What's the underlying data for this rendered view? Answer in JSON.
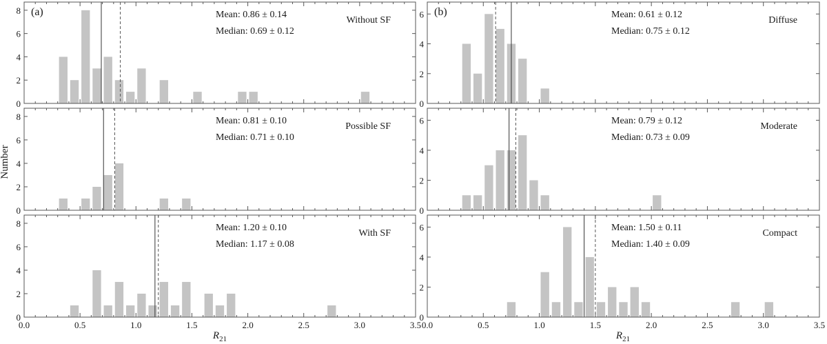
{
  "chart_data": [
    {
      "type": "bar",
      "panel_label": "(a)",
      "title": "Without SF",
      "mean_text": "Mean: 0.86 ± 0.14",
      "median_text": "Median: 0.69 ± 0.12",
      "mean": 0.86,
      "median": 0.69,
      "bin_width": 0.1,
      "bin_centers": [
        0.35,
        0.45,
        0.55,
        0.65,
        0.75,
        0.85,
        0.95,
        1.05,
        1.25,
        1.55,
        1.95,
        2.05,
        3.05
      ],
      "values": [
        4,
        2,
        8,
        3,
        4,
        2,
        1,
        3,
        2,
        1,
        1,
        1,
        1
      ],
      "xlim": [
        0,
        3.5
      ],
      "ylim": [
        0,
        8.7
      ],
      "yticks": [
        0,
        2,
        4,
        6,
        8
      ],
      "xticks": [
        "0.0",
        "0.5",
        "1.0",
        "1.5",
        "2.0",
        "2.5",
        "3.0",
        "3.5"
      ],
      "show_x_tick_labels": false
    },
    {
      "type": "bar",
      "panel_label": "",
      "title": "Possible SF",
      "mean_text": "Mean: 0.81 ± 0.10",
      "median_text": "Median: 0.71 ± 0.10",
      "mean": 0.81,
      "median": 0.71,
      "bin_width": 0.1,
      "bin_centers": [
        0.35,
        0.55,
        0.65,
        0.75,
        0.85,
        1.25,
        1.45
      ],
      "values": [
        1,
        1,
        2,
        3,
        4,
        1,
        1
      ],
      "xlim": [
        0,
        3.5
      ],
      "ylim": [
        0,
        8.7
      ],
      "yticks": [
        0,
        2,
        4,
        6,
        8
      ],
      "xticks": [
        "0.0",
        "0.5",
        "1.0",
        "1.5",
        "2.0",
        "2.5",
        "3.0",
        "3.5"
      ],
      "show_x_tick_labels": false
    },
    {
      "type": "bar",
      "panel_label": "",
      "title": "With SF",
      "mean_text": "Mean: 1.20 ± 0.10",
      "median_text": "Median: 1.17 ± 0.08",
      "mean": 1.2,
      "median": 1.17,
      "bin_width": 0.1,
      "bin_centers": [
        0.45,
        0.65,
        0.75,
        0.85,
        0.95,
        1.05,
        1.15,
        1.25,
        1.35,
        1.45,
        1.65,
        1.75,
        1.85,
        2.75
      ],
      "values": [
        1,
        4,
        1,
        3,
        1,
        2,
        1,
        3,
        1,
        3,
        2,
        1,
        2,
        1
      ],
      "xlim": [
        0,
        3.5
      ],
      "ylim": [
        0,
        8.7
      ],
      "yticks": [
        0,
        2,
        4,
        6,
        8
      ],
      "xticks": [
        "0.0",
        "0.5",
        "1.0",
        "1.5",
        "2.0",
        "2.5",
        "3.0",
        "3.5"
      ],
      "show_x_tick_labels": true
    },
    {
      "type": "bar",
      "panel_label": "(b)",
      "title": "Diffuse",
      "mean_text": "Mean: 0.61 ± 0.12",
      "median_text": "Median: 0.75 ± 0.12",
      "mean": 0.61,
      "median": 0.75,
      "bin_width": 0.1,
      "bin_centers": [
        0.35,
        0.45,
        0.55,
        0.65,
        0.75,
        0.85,
        1.05
      ],
      "values": [
        4,
        2,
        6,
        5,
        4,
        3,
        1
      ],
      "xlim": [
        0,
        3.5
      ],
      "ylim": [
        0,
        6.8
      ],
      "yticks": [
        0,
        2,
        4,
        6
      ],
      "xticks": [
        "0.0",
        "0.5",
        "1.0",
        "1.5",
        "2.0",
        "2.5",
        "3.0",
        "3.5"
      ],
      "show_x_tick_labels": false
    },
    {
      "type": "bar",
      "panel_label": "",
      "title": "Moderate",
      "mean_text": "Mean: 0.79 ± 0.12",
      "median_text": "Median: 0.73 ± 0.09",
      "mean": 0.79,
      "median": 0.73,
      "bin_width": 0.1,
      "bin_centers": [
        0.35,
        0.45,
        0.55,
        0.65,
        0.75,
        0.85,
        0.95,
        1.05,
        2.05
      ],
      "values": [
        1,
        1,
        3,
        4,
        4,
        5,
        2,
        1,
        1
      ],
      "xlim": [
        0,
        3.5
      ],
      "ylim": [
        0,
        6.8
      ],
      "yticks": [
        0,
        2,
        4,
        6
      ],
      "xticks": [
        "0.0",
        "0.5",
        "1.0",
        "1.5",
        "2.0",
        "2.5",
        "3.0",
        "3.5"
      ],
      "show_x_tick_labels": false
    },
    {
      "type": "bar",
      "panel_label": "",
      "title": "Compact",
      "mean_text": "Mean: 1.50 ± 0.11",
      "median_text": "Median: 1.40 ± 0.09",
      "mean": 1.5,
      "median": 1.4,
      "bin_width": 0.1,
      "bin_centers": [
        0.75,
        1.05,
        1.15,
        1.25,
        1.35,
        1.45,
        1.55,
        1.65,
        1.75,
        1.85,
        1.95,
        2.75,
        3.05
      ],
      "values": [
        1,
        3,
        1,
        6,
        1,
        4,
        1,
        2,
        1,
        2,
        1,
        1,
        1
      ],
      "xlim": [
        0,
        3.5
      ],
      "ylim": [
        0,
        6.8
      ],
      "yticks": [
        0,
        2,
        4,
        6
      ],
      "xticks": [
        "0.0",
        "0.5",
        "1.0",
        "1.5",
        "2.0",
        "2.5",
        "3.0",
        "3.5"
      ],
      "show_x_tick_labels": true
    }
  ],
  "labels": {
    "ylabel": "Number",
    "xlabel_main": "R",
    "xlabel_sub": "21"
  }
}
